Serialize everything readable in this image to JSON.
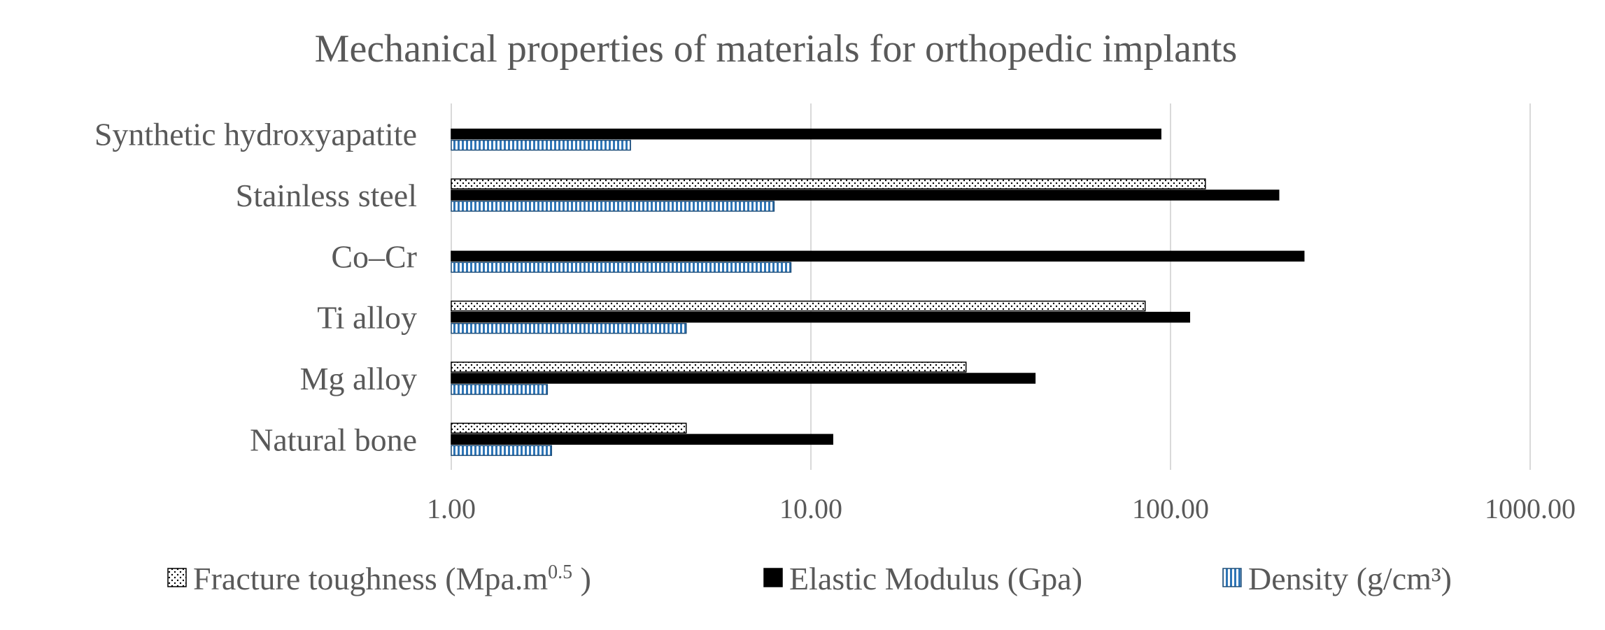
{
  "chart_data": {
    "type": "bar",
    "orientation": "horizontal",
    "title": "Mechanical properties of materials for orthopedic implants",
    "xscale": "log",
    "xlim": [
      1,
      1000
    ],
    "xticks": [
      "1.00",
      "10.00",
      "100.00",
      "1000.00"
    ],
    "grid": true,
    "legend_position": "bottom",
    "categories": [
      "Synthetic hydroxyapatite",
      "Stainless steel",
      "Co–Cr",
      "Ti alloy",
      "Mg alloy",
      "Natural bone"
    ],
    "series": [
      {
        "name": "Fracture toughness",
        "unit_base": "(Mpa.m",
        "unit_sup": "0.5",
        "unit_tail": " )",
        "pattern": "dotted",
        "color": "#000000",
        "values": [
          null,
          125,
          null,
          85,
          27,
          4.5
        ]
      },
      {
        "name": "Elastic Modulus",
        "unit_base": "(Gpa)",
        "unit_sup": "",
        "unit_tail": "",
        "pattern": "solid",
        "color": "#000000",
        "values": [
          94,
          200,
          235,
          113,
          42,
          11.5
        ]
      },
      {
        "name": "Density",
        "unit_base": "(g/cm³)",
        "unit_sup": "",
        "unit_tail": "",
        "pattern": "vertical-stripes",
        "color": "#2E75B6",
        "values": [
          3.15,
          7.9,
          8.8,
          4.5,
          1.85,
          1.9
        ]
      }
    ]
  }
}
